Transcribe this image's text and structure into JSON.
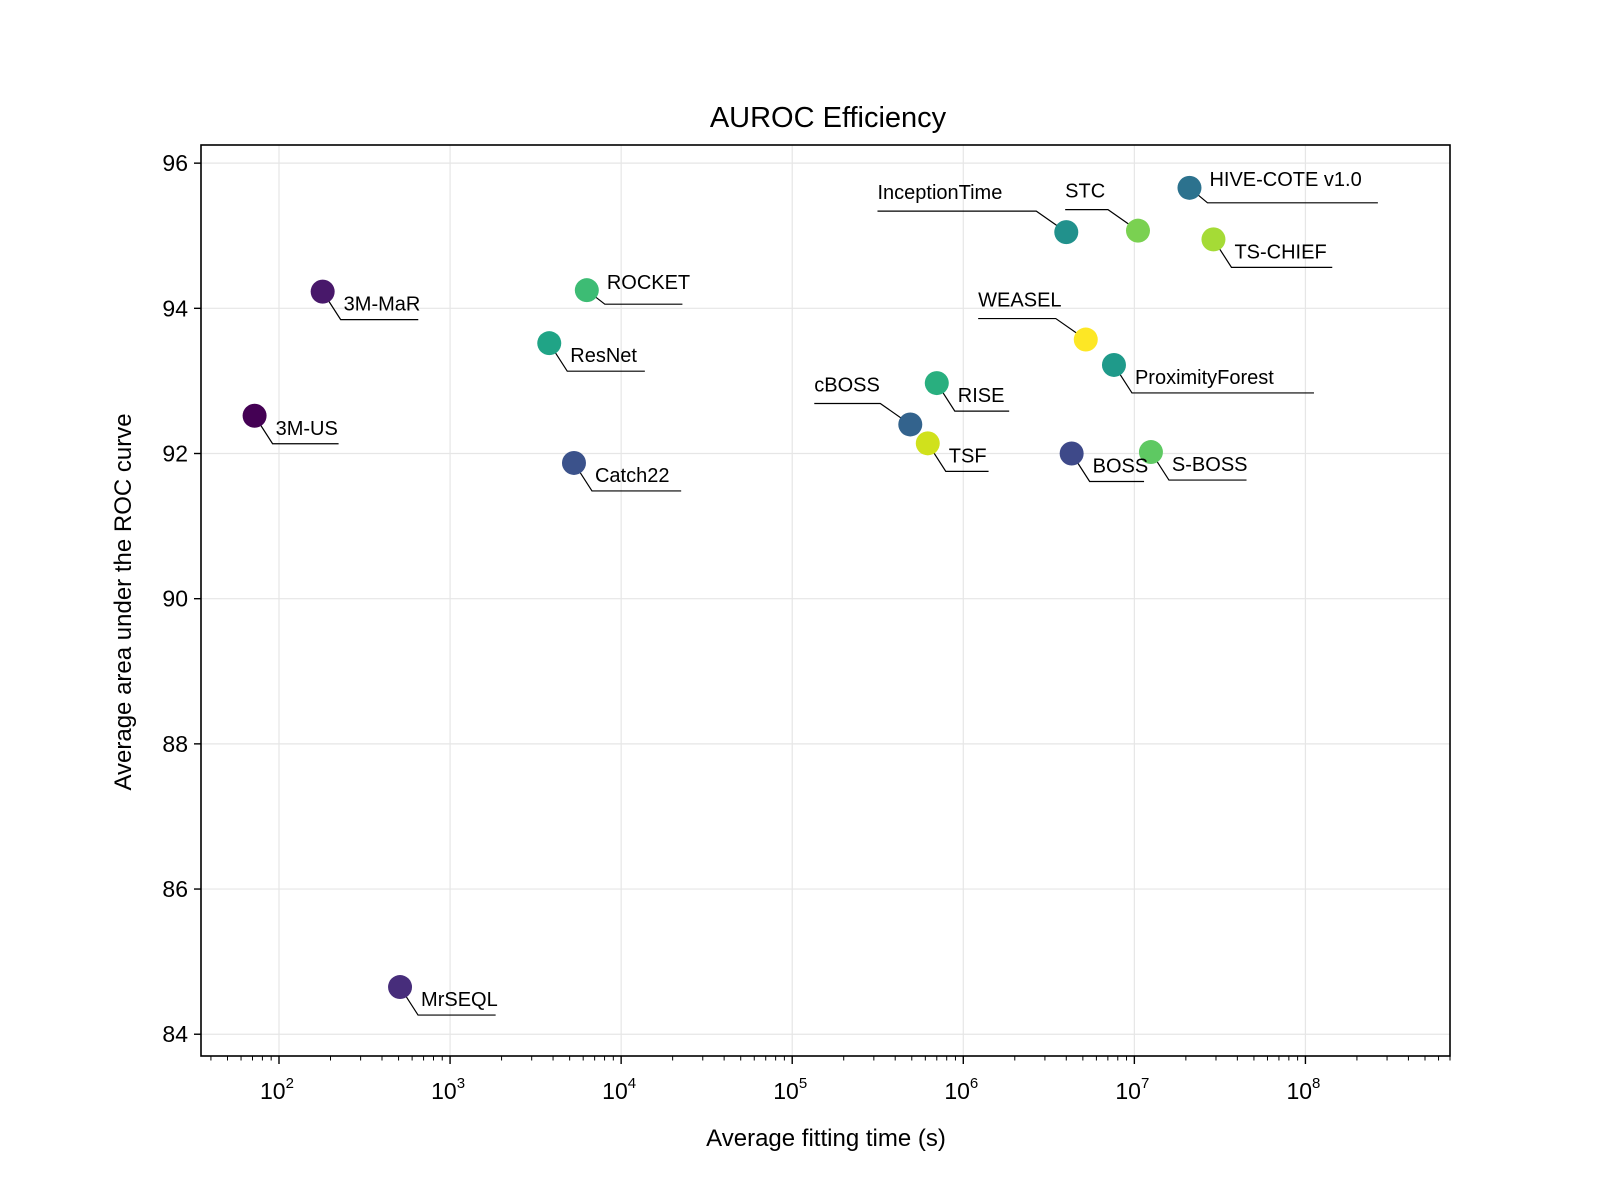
{
  "chart_data": {
    "type": "scatter",
    "title": "AUROC Efficiency",
    "xlabel": "Average fitting time (s)",
    "ylabel": "Average area under the ROC curve",
    "xscale": "log",
    "xlim": [
      35,
      700000000
    ],
    "ylim": [
      83.7,
      96.25
    ],
    "grid": true,
    "x_ticks": [
      100,
      1000,
      10000,
      100000,
      1000000,
      10000000,
      100000000
    ],
    "x_tick_labels": [
      {
        "base": "10",
        "exp": "2"
      },
      {
        "base": "10",
        "exp": "3"
      },
      {
        "base": "10",
        "exp": "4"
      },
      {
        "base": "10",
        "exp": "5"
      },
      {
        "base": "10",
        "exp": "6"
      },
      {
        "base": "10",
        "exp": "7"
      },
      {
        "base": "10",
        "exp": "8"
      }
    ],
    "y_ticks": [
      84,
      86,
      88,
      90,
      92,
      94,
      96
    ],
    "y_tick_labels": [
      "84",
      "86",
      "88",
      "90",
      "92",
      "94",
      "96"
    ],
    "points": [
      {
        "label": "3M-US",
        "x": 72,
        "y": 92.52,
        "color": "#440154",
        "label_pos": "below-right"
      },
      {
        "label": "3M-MaR",
        "x": 180,
        "y": 94.23,
        "color": "#48186a",
        "label_pos": "below-right"
      },
      {
        "label": "MrSEQL",
        "x": 510,
        "y": 84.65,
        "color": "#472d7b",
        "label_pos": "below-right"
      },
      {
        "label": "ResNet",
        "x": 3800,
        "y": 93.52,
        "color": "#20a486",
        "label_pos": "below-right"
      },
      {
        "label": "ROCKET",
        "x": 6300,
        "y": 94.25,
        "color": "#3dbc74",
        "label_pos": "above-right"
      },
      {
        "label": "Catch22",
        "x": 5300,
        "y": 91.87,
        "color": "#3b528b",
        "label_pos": "below-right"
      },
      {
        "label": "cBOSS",
        "x": 490000,
        "y": 92.4,
        "color": "#33638d",
        "label_pos": "above-left"
      },
      {
        "label": "TSF",
        "x": 620000,
        "y": 92.14,
        "color": "#d0e11c",
        "label_pos": "below-right"
      },
      {
        "label": "RISE",
        "x": 700000,
        "y": 92.97,
        "color": "#29af7f",
        "label_pos": "below-right"
      },
      {
        "label": "InceptionTime",
        "x": 4000000,
        "y": 95.05,
        "color": "#21918c",
        "label_pos": "above-left"
      },
      {
        "label": "WEASEL",
        "x": 5200000,
        "y": 93.57,
        "color": "#fde725",
        "label_pos": "above-left"
      },
      {
        "label": "BOSS",
        "x": 4300000,
        "y": 92.0,
        "color": "#3e4989",
        "label_pos": "below-right"
      },
      {
        "label": "ProximityForest",
        "x": 7600000,
        "y": 93.22,
        "color": "#1f9a8a",
        "label_pos": "below-right"
      },
      {
        "label": "STC",
        "x": 10500000,
        "y": 95.07,
        "color": "#7ad151",
        "label_pos": "above-left"
      },
      {
        "label": "S-BOSS",
        "x": 12500000,
        "y": 92.02,
        "color": "#5ec962",
        "label_pos": "below-right"
      },
      {
        "label": "HIVE-COTE v1.0",
        "x": 21000000,
        "y": 95.66,
        "color": "#2c728e",
        "label_pos": "right"
      },
      {
        "label": "TS-CHIEF",
        "x": 29000000,
        "y": 94.95,
        "color": "#a5db36",
        "label_pos": "below-right"
      }
    ]
  }
}
